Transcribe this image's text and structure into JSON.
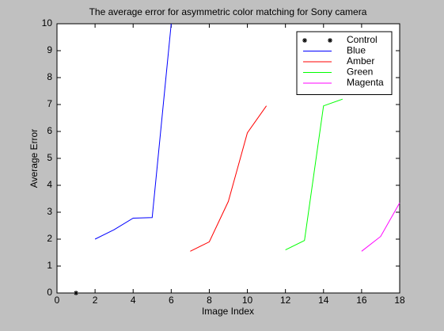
{
  "chart_data": {
    "type": "line",
    "title": "The average error for asymmetric color matching for Sony camera",
    "xlabel": "Image Index",
    "ylabel": "Average Error",
    "xlim": [
      0,
      18
    ],
    "xticks": [
      0,
      2,
      4,
      6,
      8,
      10,
      12,
      14,
      16,
      18
    ],
    "ylim": [
      0,
      10
    ],
    "yticks": [
      0,
      1,
      2,
      3,
      4,
      5,
      6,
      7,
      8,
      9,
      10
    ],
    "legend": "upper right",
    "series": [
      {
        "name": "Control",
        "color": "#000000",
        "marker": "*",
        "x": [
          1
        ],
        "values": [
          0
        ]
      },
      {
        "name": "Blue",
        "color": "#0000ff",
        "x": [
          2,
          3,
          4,
          5,
          6
        ],
        "values": [
          2.0,
          2.35,
          2.78,
          2.8,
          10
        ]
      },
      {
        "name": "Amber",
        "color": "#ff0000",
        "x": [
          7,
          8,
          9,
          10,
          11
        ],
        "values": [
          1.55,
          1.9,
          3.4,
          5.95,
          6.95
        ]
      },
      {
        "name": "Green",
        "color": "#00ff00",
        "x": [
          12,
          13,
          14,
          15
        ],
        "values": [
          1.6,
          1.95,
          6.95,
          7.2
        ]
      },
      {
        "name": "Magenta",
        "color": "#ff00ff",
        "x": [
          16,
          17,
          18
        ],
        "values": [
          1.55,
          2.1,
          3.35
        ]
      }
    ]
  }
}
